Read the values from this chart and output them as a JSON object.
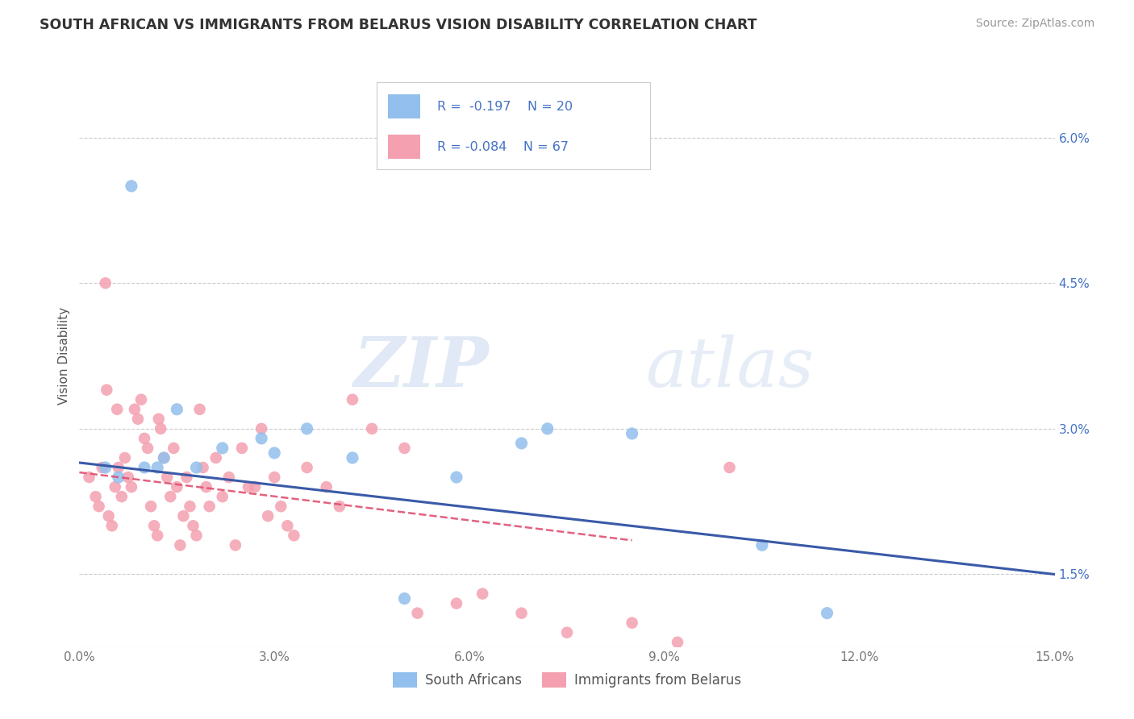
{
  "title": "SOUTH AFRICAN VS IMMIGRANTS FROM BELARUS VISION DISABILITY CORRELATION CHART",
  "source": "Source: ZipAtlas.com",
  "ylabel": "Vision Disability",
  "xlim": [
    0.0,
    15.0
  ],
  "ylim": [
    0.75,
    6.75
  ],
  "xticks": [
    0.0,
    3.0,
    6.0,
    9.0,
    12.0,
    15.0
  ],
  "xticklabels": [
    "0.0%",
    "3.0%",
    "6.0%",
    "9.0%",
    "12.0%",
    "15.0%"
  ],
  "yticks_right": [
    1.5,
    3.0,
    4.5,
    6.0
  ],
  "yticklabels_right": [
    "1.5%",
    "3.0%",
    "4.5%",
    "6.0%"
  ],
  "legend_label1": "South Africans",
  "legend_label2": "Immigrants from Belarus",
  "blue_color": "#92BFED",
  "pink_color": "#F4A0B0",
  "blue_line_color": "#3A5AA8",
  "pink_line_color": "#E05070",
  "watermark_zip": "ZIP",
  "watermark_atlas": "atlas",
  "background_color": "#FFFFFF",
  "grid_color": "#CCCCCC",
  "sa_x": [
    0.4,
    0.6,
    0.8,
    1.0,
    1.3,
    1.5,
    1.8,
    2.2,
    2.8,
    3.5,
    4.2,
    5.0,
    5.8,
    7.2,
    10.5,
    11.5,
    8.5,
    6.8,
    3.0,
    1.2
  ],
  "sa_y": [
    2.6,
    2.5,
    5.5,
    2.6,
    2.7,
    3.2,
    2.6,
    2.8,
    2.9,
    3.0,
    2.7,
    1.25,
    2.5,
    3.0,
    1.8,
    1.1,
    2.95,
    2.85,
    2.75,
    2.6
  ],
  "bel_x": [
    0.15,
    0.25,
    0.35,
    0.4,
    0.45,
    0.5,
    0.55,
    0.6,
    0.65,
    0.7,
    0.75,
    0.8,
    0.85,
    0.9,
    0.95,
    1.0,
    1.05,
    1.1,
    1.15,
    1.2,
    1.25,
    1.3,
    1.35,
    1.4,
    1.45,
    1.5,
    1.55,
    1.6,
    1.65,
    1.7,
    1.75,
    1.8,
    1.85,
    1.9,
    1.95,
    2.0,
    2.1,
    2.2,
    2.3,
    2.4,
    2.5,
    2.6,
    2.7,
    2.8,
    2.9,
    3.0,
    3.1,
    3.2,
    3.3,
    3.5,
    3.8,
    4.0,
    4.2,
    4.5,
    5.0,
    5.2,
    5.8,
    6.2,
    6.8,
    7.5,
    8.5,
    9.2,
    10.0,
    0.3,
    0.42,
    0.58,
    1.22
  ],
  "bel_y": [
    2.5,
    2.3,
    2.6,
    4.5,
    2.1,
    2.0,
    2.4,
    2.6,
    2.3,
    2.7,
    2.5,
    2.4,
    3.2,
    3.1,
    3.3,
    2.9,
    2.8,
    2.2,
    2.0,
    1.9,
    3.0,
    2.7,
    2.5,
    2.3,
    2.8,
    2.4,
    1.8,
    2.1,
    2.5,
    2.2,
    2.0,
    1.9,
    3.2,
    2.6,
    2.4,
    2.2,
    2.7,
    2.3,
    2.5,
    1.8,
    2.8,
    2.4,
    2.4,
    3.0,
    2.1,
    2.5,
    2.2,
    2.0,
    1.9,
    2.6,
    2.4,
    2.2,
    3.3,
    3.0,
    2.8,
    1.1,
    1.2,
    1.3,
    1.1,
    0.9,
    1.0,
    0.8,
    2.6,
    2.2,
    3.4,
    3.2,
    3.1
  ]
}
